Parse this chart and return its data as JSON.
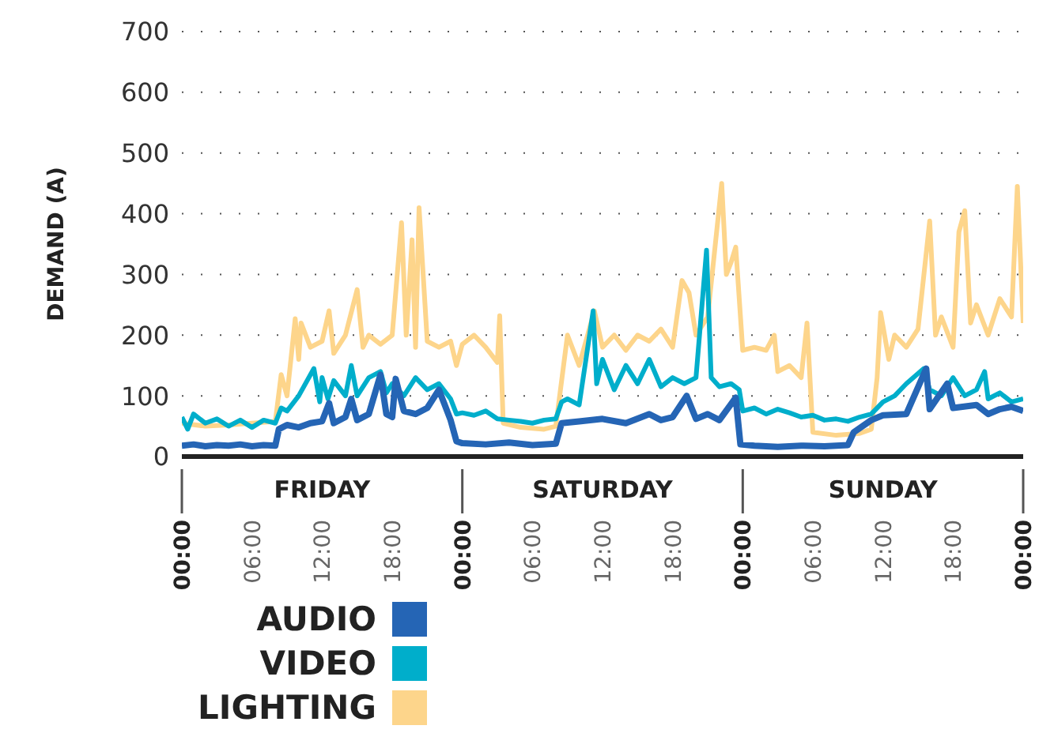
{
  "chart_data": {
    "type": "line",
    "ylabel": "DEMAND (A)",
    "xlim": [
      "--01-01T00:00",
      "--01-04T00:00"
    ],
    "xticks": [
      {
        "value": "--01-01T00:00",
        "label": "00:00"
      },
      {
        "value": "--01-01T06:00",
        "label": "06:00"
      },
      {
        "value": "--01-01T12:00",
        "label": "12:00"
      },
      {
        "value": "--01-01T18:00",
        "label": "18:00"
      },
      {
        "value": "--01-02T00:00",
        "label": "00:00"
      },
      {
        "value": "--01-02T06:00",
        "label": "06:00"
      },
      {
        "value": "--01-02T12:00",
        "label": "12:00"
      },
      {
        "value": "--01-02T18:00",
        "label": "18:00"
      },
      {
        "value": "--01-03T00:00",
        "label": "00:00"
      },
      {
        "value": "--01-03T06:00",
        "label": "06:00"
      },
      {
        "value": "--01-03T12:00",
        "label": "12:00"
      },
      {
        "value": "--01-03T18:00",
        "label": "18:00"
      },
      {
        "value": "--01-04T00:00",
        "label": "00:00"
      }
    ],
    "ylim": [
      0,
      700
    ],
    "yticks": [
      0,
      100,
      200,
      300,
      400,
      500,
      600,
      700
    ],
    "grid": "y",
    "legend": "bottom",
    "marker": "none",
    "line_style": "solid",
    "annotations": [
      "FRIDAY",
      "SATURDAY",
      "SUNDAY"
    ],
    "series": [
      {
        "name": "AUDIO",
        "color": "#2565b5",
        "x": [
          "--01-01T00:00",
          "--01-01T01:00",
          "--01-01T02:00",
          "--01-01T03:00",
          "--01-01T04:00",
          "--01-01T05:00",
          "--01-01T06:00",
          "--01-01T07:00",
          "--01-01T08:00",
          "--01-01T08:18",
          "--01-01T09:00",
          "--01-01T10:00",
          "--01-01T11:00",
          "--01-01T12:00",
          "--01-01T12:36",
          "--01-01T13:00",
          "--01-01T14:00",
          "--01-01T14:30",
          "--01-01T15:00",
          "--01-01T16:00",
          "--01-01T17:00",
          "--01-01T17:30",
          "--01-01T18:00",
          "--01-01T18:18",
          "--01-01T19:00",
          "--01-01T20:00",
          "--01-01T21:00",
          "--01-01T22:00",
          "--01-01T23:00",
          "--01-01T23:30",
          "--01-02T00:00",
          "--01-02T02:00",
          "--01-02T04:00",
          "--01-02T06:00",
          "--01-02T08:00",
          "--01-02T08:30",
          "--01-02T10:00",
          "--01-02T12:00",
          "--01-02T14:00",
          "--01-02T16:00",
          "--01-02T17:00",
          "--01-02T18:00",
          "--01-02T19:12",
          "--01-02T20:00",
          "--01-02T21:00",
          "--01-02T22:00",
          "--01-02T23:24",
          "--01-02T23:48",
          "--01-03T01:00",
          "--01-03T03:00",
          "--01-03T05:00",
          "--01-03T07:00",
          "--01-03T09:00",
          "--01-03T09:30",
          "--01-03T11:00",
          "--01-03T12:00",
          "--01-03T14:00",
          "--01-03T15:42",
          "--01-03T16:00",
          "--01-03T17:30",
          "--01-03T18:00",
          "--01-03T20:00",
          "--01-03T21:00",
          "--01-03T22:00",
          "--01-03T23:00",
          "--01-04T00:00"
        ],
        "values": [
          18,
          20,
          17,
          19,
          18,
          20,
          17,
          19,
          18,
          45,
          52,
          48,
          55,
          58,
          88,
          55,
          65,
          95,
          60,
          70,
          135,
          70,
          65,
          128,
          75,
          70,
          80,
          110,
          60,
          25,
          22,
          20,
          23,
          19,
          21,
          55,
          58,
          62,
          55,
          70,
          60,
          65,
          100,
          62,
          70,
          60,
          97,
          20,
          18,
          16,
          18,
          17,
          19,
          40,
          60,
          68,
          70,
          145,
          78,
          120,
          80,
          85,
          70,
          78,
          82,
          75
        ]
      },
      {
        "name": "VIDEO",
        "color": "#00aecb",
        "x": [
          "--01-01T00:00",
          "--01-01T00:30",
          "--01-01T01:00",
          "--01-01T02:00",
          "--01-01T03:00",
          "--01-01T04:00",
          "--01-01T05:00",
          "--01-01T06:00",
          "--01-01T07:00",
          "--01-01T08:00",
          "--01-01T08:30",
          "--01-01T09:00",
          "--01-01T10:00",
          "--01-01T11:18",
          "--01-01T11:48",
          "--01-01T12:00",
          "--01-01T12:30",
          "--01-01T13:00",
          "--01-01T14:00",
          "--01-01T14:30",
          "--01-01T15:00",
          "--01-01T16:00",
          "--01-01T17:00",
          "--01-01T17:30",
          "--01-01T18:00",
          "--01-01T19:00",
          "--01-01T20:00",
          "--01-01T21:00",
          "--01-01T22:00",
          "--01-01T23:00",
          "--01-01T23:30",
          "--01-02T00:00",
          "--01-02T01:00",
          "--01-02T02:00",
          "--01-02T03:00",
          "--01-02T04:00",
          "--01-02T05:00",
          "--01-02T06:00",
          "--01-02T07:00",
          "--01-02T08:00",
          "--01-02T08:30",
          "--01-02T09:00",
          "--01-02T10:00",
          "--01-02T11:12",
          "--01-02T11:30",
          "--01-02T12:00",
          "--01-02T13:00",
          "--01-02T14:00",
          "--01-02T15:00",
          "--01-02T16:00",
          "--01-02T17:00",
          "--01-02T18:00",
          "--01-02T19:00",
          "--01-02T20:00",
          "--01-02T20:54",
          "--01-02T21:18",
          "--01-02T22:00",
          "--01-02T23:00",
          "--01-02T23:42",
          "--01-03T00:00",
          "--01-03T01:00",
          "--01-03T02:00",
          "--01-03T03:00",
          "--01-03T04:00",
          "--01-03T05:00",
          "--01-03T06:00",
          "--01-03T07:00",
          "--01-03T08:00",
          "--01-03T09:00",
          "--01-03T10:00",
          "--01-03T11:00",
          "--01-03T12:00",
          "--01-03T13:00",
          "--01-03T14:00",
          "--01-03T15:30",
          "--01-03T16:00",
          "--01-03T17:00",
          "--01-03T18:00",
          "--01-03T19:00",
          "--01-03T20:00",
          "--01-03T20:42",
          "--01-03T21:00",
          "--01-03T22:00",
          "--01-03T23:00",
          "--01-04T00:00"
        ],
        "values": [
          65,
          45,
          70,
          55,
          62,
          50,
          60,
          48,
          60,
          55,
          80,
          75,
          100,
          145,
          90,
          130,
          95,
          125,
          100,
          150,
          100,
          130,
          140,
          105,
          120,
          100,
          130,
          110,
          120,
          95,
          70,
          72,
          68,
          75,
          62,
          60,
          58,
          55,
          60,
          62,
          90,
          95,
          85,
          240,
          120,
          160,
          110,
          150,
          120,
          160,
          115,
          130,
          120,
          130,
          340,
          130,
          115,
          120,
          110,
          75,
          80,
          70,
          78,
          72,
          65,
          68,
          60,
          62,
          58,
          65,
          70,
          90,
          100,
          120,
          145,
          110,
          100,
          130,
          100,
          110,
          140,
          95,
          105,
          90,
          95
        ]
      },
      {
        "name": "LIGHTING",
        "color": "#fdd58b",
        "x": [
          "--01-01T00:00",
          "--01-01T02:00",
          "--01-01T04:00",
          "--01-01T06:00",
          "--01-01T08:00",
          "--01-01T08:30",
          "--01-01T09:00",
          "--01-01T09:42",
          "--01-01T10:00",
          "--01-01T10:12",
          "--01-01T11:00",
          "--01-01T12:00",
          "--01-01T12:36",
          "--01-01T13:00",
          "--01-01T14:00",
          "--01-01T15:00",
          "--01-01T15:30",
          "--01-01T16:00",
          "--01-01T17:00",
          "--01-01T18:00",
          "--01-01T18:48",
          "--01-01T19:12",
          "--01-01T19:42",
          "--01-01T20:00",
          "--01-01T20:18",
          "--01-01T21:00",
          "--01-01T22:00",
          "--01-01T23:00",
          "--01-01T23:30",
          "--01-02T00:00",
          "--01-02T01:00",
          "--01-02T02:00",
          "--01-02T03:00",
          "--01-02T03:12",
          "--01-02T03:30",
          "--01-02T05:00",
          "--01-02T07:00",
          "--01-02T08:00",
          "--01-02T09:00",
          "--01-02T10:00",
          "--01-02T11:18",
          "--01-02T12:00",
          "--01-02T13:00",
          "--01-02T14:00",
          "--01-02T15:00",
          "--01-02T16:00",
          "--01-02T17:00",
          "--01-02T18:00",
          "--01-02T18:48",
          "--01-02T19:24",
          "--01-02T20:00",
          "--01-02T21:00",
          "--01-02T22:12",
          "--01-02T22:36",
          "--01-02T23:00",
          "--01-02T23:24",
          "--01-03T00:00",
          "--01-03T01:00",
          "--01-03T02:00",
          "--01-03T02:42",
          "--01-03T03:00",
          "--01-03T04:00",
          "--01-03T05:00",
          "--01-03T05:30",
          "--01-03T06:00",
          "--01-03T08:00",
          "--01-03T10:00",
          "--01-03T11:00",
          "--01-03T11:30",
          "--01-03T11:48",
          "--01-03T12:30",
          "--01-03T13:00",
          "--01-03T14:00",
          "--01-03T15:00",
          "--01-03T16:00",
          "--01-03T16:30",
          "--01-03T17:00",
          "--01-03T18:00",
          "--01-03T18:30",
          "--01-03T19:00",
          "--01-03T19:30",
          "--01-03T20:00",
          "--01-03T21:00",
          "--01-03T22:00",
          "--01-03T23:00",
          "--01-03T23:30",
          "--01-04T00:00"
        ],
        "values": [
          55,
          50,
          52,
          55,
          58,
          135,
          100,
          227,
          160,
          220,
          180,
          190,
          240,
          170,
          200,
          275,
          180,
          200,
          185,
          200,
          385,
          200,
          357,
          180,
          410,
          190,
          180,
          190,
          150,
          185,
          200,
          180,
          155,
          232,
          55,
          48,
          45,
          50,
          200,
          150,
          240,
          180,
          200,
          175,
          200,
          190,
          210,
          180,
          290,
          270,
          200,
          230,
          450,
          300,
          320,
          345,
          175,
          180,
          175,
          200,
          140,
          150,
          130,
          220,
          40,
          35,
          38,
          45,
          130,
          237,
          160,
          200,
          180,
          210,
          388,
          200,
          230,
          180,
          370,
          405,
          220,
          250,
          200,
          260,
          230,
          445,
          220
        ]
      }
    ]
  }
}
